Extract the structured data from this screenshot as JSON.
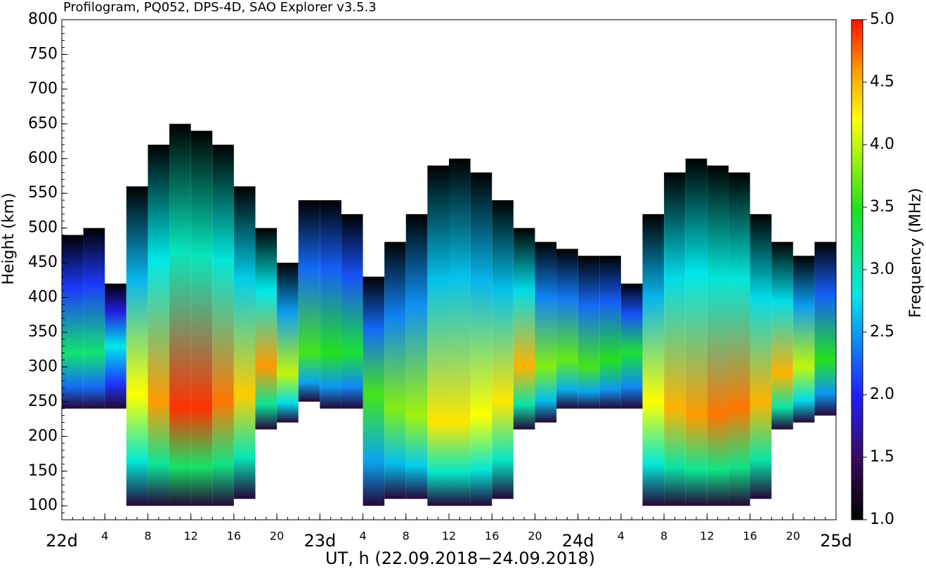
{
  "chart_data": {
    "type": "profilogram",
    "title": "Profilogram, PQ052, DPS-4D, SAO Explorer v3.5.3",
    "xlabel": "UT, h (22.09.2018−24.09.2018)",
    "ylabel": "Height (km)",
    "colorbar_label": "Frequency (MHz)",
    "x": [
      0,
      2,
      4,
      6,
      8,
      10,
      12,
      14,
      16,
      18,
      20,
      22,
      24,
      26,
      28,
      30,
      32,
      34,
      36,
      38,
      40,
      42,
      44,
      46,
      48,
      50,
      52,
      54,
      56,
      58,
      60,
      62,
      64,
      66,
      68,
      70
    ],
    "hmin": [
      240,
      240,
      240,
      100,
      100,
      100,
      100,
      100,
      110,
      210,
      220,
      250,
      240,
      240,
      100,
      110,
      110,
      100,
      100,
      100,
      110,
      210,
      220,
      240,
      240,
      240,
      240,
      100,
      100,
      100,
      100,
      100,
      110,
      210,
      220,
      230
    ],
    "hmax": [
      490,
      500,
      420,
      560,
      620,
      650,
      640,
      620,
      560,
      500,
      450,
      540,
      540,
      520,
      430,
      480,
      520,
      590,
      600,
      580,
      540,
      500,
      480,
      470,
      460,
      460,
      420,
      520,
      580,
      600,
      590,
      580,
      520,
      480,
      460,
      480
    ],
    "hmF2": [
      320,
      320,
      330,
      260,
      250,
      240,
      240,
      250,
      260,
      300,
      290,
      320,
      320,
      320,
      260,
      240,
      230,
      220,
      220,
      230,
      250,
      300,
      300,
      310,
      300,
      310,
      320,
      250,
      240,
      230,
      230,
      240,
      250,
      290,
      300,
      310
    ],
    "foF2": [
      3.2,
      3.2,
      2.8,
      4.2,
      4.6,
      4.9,
      4.9,
      4.7,
      4.4,
      4.6,
      4.0,
      3.6,
      3.5,
      3.4,
      3.6,
      3.8,
      3.9,
      4.3,
      4.3,
      4.2,
      4.3,
      4.5,
      3.8,
      3.7,
      3.6,
      3.5,
      3.4,
      4.2,
      4.5,
      4.6,
      4.7,
      4.7,
      4.5,
      4.5,
      4.0,
      3.5
    ],
    "bin_width": 2,
    "xlim": [
      0,
      72
    ],
    "xticks": [
      {
        "value": 0,
        "label": "22d"
      },
      4,
      8,
      12,
      16,
      20,
      {
        "value": 24,
        "label": "23d"
      },
      {
        "value": 28,
        "label": "4"
      },
      {
        "value": 32,
        "label": "8"
      },
      {
        "value": 36,
        "label": "12"
      },
      {
        "value": 40,
        "label": "16"
      },
      {
        "value": 44,
        "label": "20"
      },
      {
        "value": 48,
        "label": "24d"
      },
      {
        "value": 52,
        "label": "4"
      },
      {
        "value": 56,
        "label": "8"
      },
      {
        "value": 60,
        "label": "12"
      },
      {
        "value": 64,
        "label": "16"
      },
      {
        "value": 68,
        "label": "20"
      },
      {
        "value": 72,
        "label": "25d"
      }
    ],
    "ylim": [
      80,
      800
    ],
    "yticks": [
      100,
      150,
      200,
      250,
      300,
      350,
      400,
      450,
      500,
      550,
      600,
      650,
      700,
      750,
      800
    ],
    "clim": [
      1,
      5
    ],
    "cticks": [
      {
        "value": 1,
        "label": "1.0"
      },
      1.5,
      {
        "value": 2,
        "label": "2.0"
      },
      2.5,
      {
        "value": 3,
        "label": "3.0"
      },
      3.5,
      {
        "value": 4,
        "label": "4.0"
      },
      4.5,
      {
        "value": 5,
        "label": "5.0"
      }
    ]
  }
}
